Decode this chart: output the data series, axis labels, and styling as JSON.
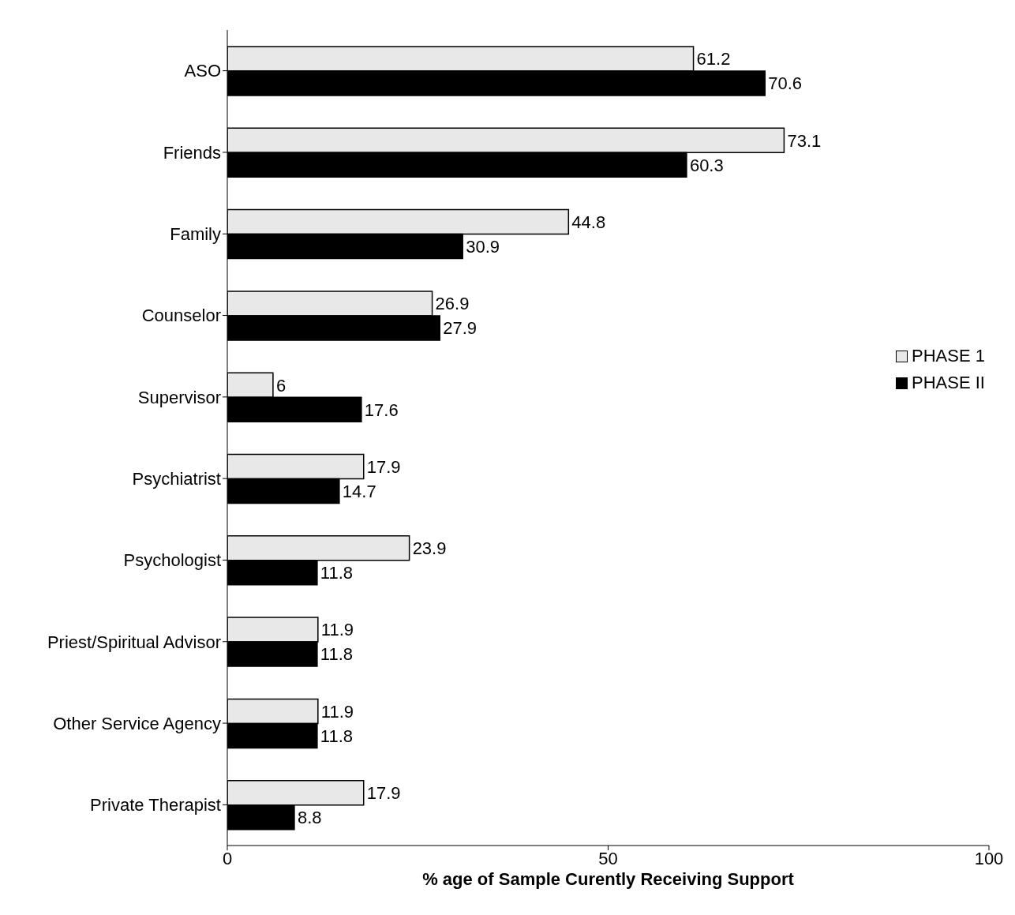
{
  "chart_data": {
    "type": "bar",
    "orientation": "horizontal",
    "xlabel": "% age of Sample Curently Receiving Support",
    "categories": [
      "ASO",
      "Friends",
      "Family",
      "Counselor",
      "Supervisor",
      "Psychiatrist",
      "Psychologist",
      "Priest/Spiritual Advisor",
      "Other Service Agency",
      "Private Therapist"
    ],
    "series": [
      {
        "name": "PHASE 1",
        "color": "#e8e8e8",
        "values": [
          61.2,
          73.1,
          44.8,
          26.9,
          6,
          17.9,
          23.9,
          11.9,
          11.9,
          17.9
        ]
      },
      {
        "name": "PHASE II",
        "color": "#000000",
        "values": [
          70.6,
          60.3,
          30.9,
          27.9,
          17.6,
          14.7,
          11.8,
          11.8,
          11.8,
          8.8
        ]
      }
    ],
    "xlim": [
      0,
      100
    ],
    "xticks": [
      0,
      50,
      100
    ],
    "legend": "right",
    "data_labels": true
  }
}
